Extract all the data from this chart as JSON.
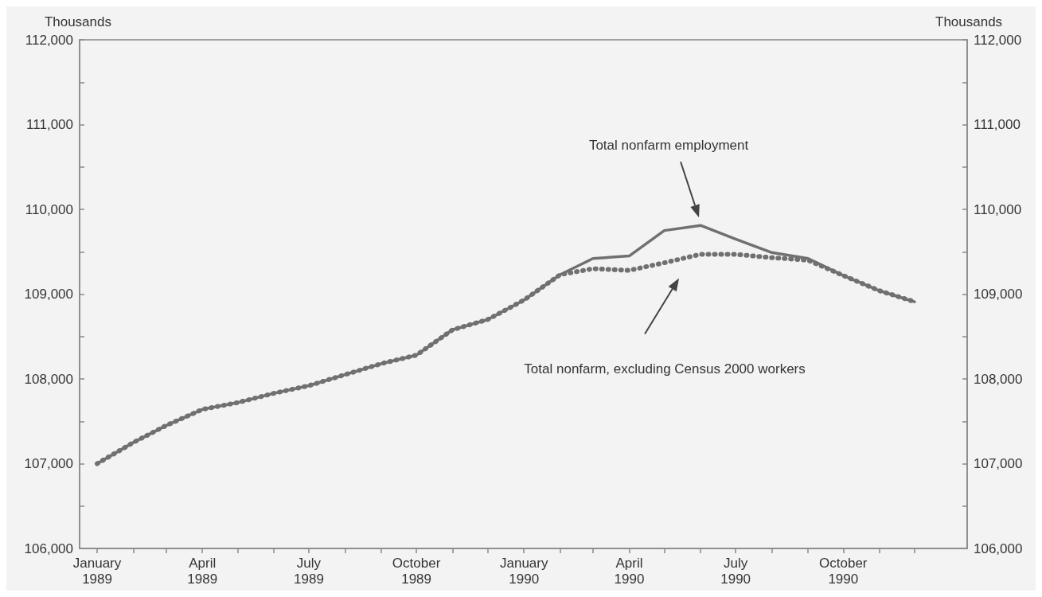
{
  "chart_data": {
    "type": "line",
    "xlabel": null,
    "ylabel": "Thousands",
    "y2label": "Thousands",
    "x": [
      "1989-01",
      "1989-02",
      "1989-03",
      "1989-04",
      "1989-05",
      "1989-06",
      "1989-07",
      "1989-08",
      "1989-09",
      "1989-10",
      "1989-11",
      "1989-12",
      "1990-01",
      "1990-02",
      "1990-03",
      "1990-04",
      "1990-05",
      "1990-06",
      "1990-07",
      "1990-08",
      "1990-09",
      "1990-10",
      "1990-11",
      "1990-12"
    ],
    "series": [
      {
        "color": "#707070",
        "line_style": "solid",
        "values": [
          107000,
          107250,
          107450,
          107640,
          107720,
          107830,
          107920,
          108050,
          108180,
          108280,
          108580,
          108700,
          108930,
          109230,
          109420,
          109450,
          109750,
          109810,
          109650,
          109490,
          109420,
          109220,
          109040,
          108910
        ]
      },
      {
        "color": "#707070",
        "line_style": "dotted",
        "values": [
          107000,
          107250,
          107450,
          107640,
          107720,
          107830,
          107920,
          108050,
          108180,
          108280,
          108580,
          108700,
          108930,
          109230,
          109300,
          109280,
          109370,
          109470,
          109470,
          109430,
          109400,
          109220,
          109040,
          108910
        ]
      }
    ],
    "xlim": [
      "1988-12-17",
      "1991-01-15"
    ],
    "xticks": [
      {
        "value": "1989-01",
        "label": "January\n1989"
      },
      {
        "value": "1989-02",
        "label": null
      },
      {
        "value": "1989-03",
        "label": null
      },
      {
        "value": "1989-04",
        "label": "April\n1989"
      },
      {
        "value": "1989-05",
        "label": null
      },
      {
        "value": "1989-06",
        "label": null
      },
      {
        "value": "1989-07",
        "label": "July\n1989"
      },
      {
        "value": "1989-08",
        "label": null
      },
      {
        "value": "1989-09",
        "label": null
      },
      {
        "value": "1989-10",
        "label": "October\n1989"
      },
      {
        "value": "1989-11",
        "label": null
      },
      {
        "value": "1989-12",
        "label": null
      },
      {
        "value": "1990-01",
        "label": "January\n1990"
      },
      {
        "value": "1990-02",
        "label": null
      },
      {
        "value": "1990-03",
        "label": null
      },
      {
        "value": "1990-04",
        "label": "April\n1990"
      },
      {
        "value": "1990-05",
        "label": null
      },
      {
        "value": "1990-06",
        "label": null
      },
      {
        "value": "1990-07",
        "label": "July\n1990"
      },
      {
        "value": "1990-08",
        "label": null
      },
      {
        "value": "1990-09",
        "label": null
      },
      {
        "value": "1990-10",
        "label": "October\n1990"
      },
      {
        "value": "1990-11",
        "label": null
      },
      {
        "value": "1990-12",
        "label": null
      }
    ],
    "ylim": [
      106000,
      112000
    ],
    "yticks": [
      {
        "value": 106000,
        "label": "106,000"
      },
      {
        "value": 106500,
        "label": null
      },
      {
        "value": 107000,
        "label": "107,000"
      },
      {
        "value": 107500,
        "label": null
      },
      {
        "value": 108000,
        "label": "108,000"
      },
      {
        "value": 108500,
        "label": null
      },
      {
        "value": 109000,
        "label": "109,000"
      },
      {
        "value": 109500,
        "label": null
      },
      {
        "value": 110000,
        "label": "110,000"
      },
      {
        "value": 110500,
        "label": null
      },
      {
        "value": 111000,
        "label": "111,000"
      },
      {
        "value": 111500,
        "label": null
      },
      {
        "value": 112000,
        "label": "112,000"
      }
    ],
    "y2lim": [
      106000,
      112000
    ],
    "y2ticks": [
      {
        "value": 106000,
        "label": "106,000"
      },
      {
        "value": 106500,
        "label": null
      },
      {
        "value": 107000,
        "label": "107,000"
      },
      {
        "value": 107500,
        "label": null
      },
      {
        "value": 108000,
        "label": "108,000"
      },
      {
        "value": 108500,
        "label": null
      },
      {
        "value": 109000,
        "label": "109,000"
      },
      {
        "value": 109500,
        "label": null
      },
      {
        "value": 110000,
        "label": "110,000"
      },
      {
        "value": 110500,
        "label": null
      },
      {
        "value": 111000,
        "label": "111,000"
      },
      {
        "value": 111500,
        "label": null
      },
      {
        "value": 112000,
        "label": "112,000"
      }
    ],
    "annotations": [
      "Total nonfarm employment",
      "Total nonfarm, excluding Census 2000 workers"
    ],
    "grid": false,
    "marker": "none"
  }
}
